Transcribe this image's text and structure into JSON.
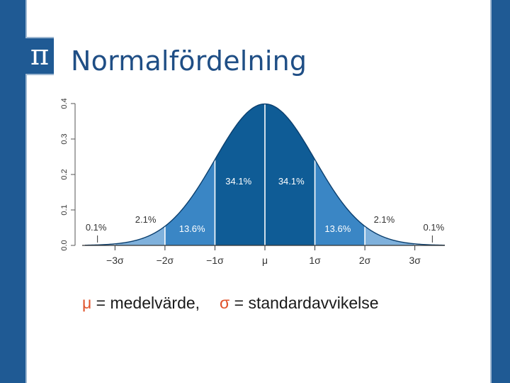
{
  "slide": {
    "title": "Normalfördelning",
    "icon": "pi-icon",
    "icon_glyph": "π",
    "accent_color": "#1f5a94",
    "title_color": "#1f4e85",
    "symbol_color": "#e0522a"
  },
  "caption": {
    "mu_symbol": "μ",
    "mu_text": " = medelvärde,",
    "sigma_symbol": "σ",
    "sigma_text": " = standardavvikelse"
  },
  "chart_data": {
    "type": "area",
    "distribution": "standard normal density",
    "xlim": [
      -3.6,
      3.6
    ],
    "ylim": [
      0,
      0.4
    ],
    "y_ticks": [
      "0.0",
      "0.1",
      "0.2",
      "0.3",
      "0.4"
    ],
    "x_ticks": [
      {
        "value": -3,
        "label": "−3σ"
      },
      {
        "value": -2,
        "label": "−2σ"
      },
      {
        "value": -1,
        "label": "−1σ"
      },
      {
        "value": 0,
        "label": "μ"
      },
      {
        "value": 1,
        "label": "1σ"
      },
      {
        "value": 2,
        "label": "2σ"
      },
      {
        "value": 3,
        "label": "3σ"
      }
    ],
    "regions": [
      {
        "from": -3,
        "to": -2,
        "label": "2.1%",
        "color": "#7fb1dc"
      },
      {
        "from": -2,
        "to": -1,
        "label": "13.6%",
        "color": "#3a86c5"
      },
      {
        "from": -1,
        "to": 0,
        "label": "34.1%",
        "color": "#0f5c96"
      },
      {
        "from": 0,
        "to": 1,
        "label": "34.1%",
        "color": "#0f5c96"
      },
      {
        "from": 1,
        "to": 2,
        "label": "13.6%",
        "color": "#3a86c5"
      },
      {
        "from": 2,
        "to": 3,
        "label": "2.1%",
        "color": "#7fb1dc"
      }
    ],
    "tails": [
      {
        "side": "left",
        "label": "0.1%"
      },
      {
        "side": "right",
        "label": "0.1%"
      }
    ]
  }
}
